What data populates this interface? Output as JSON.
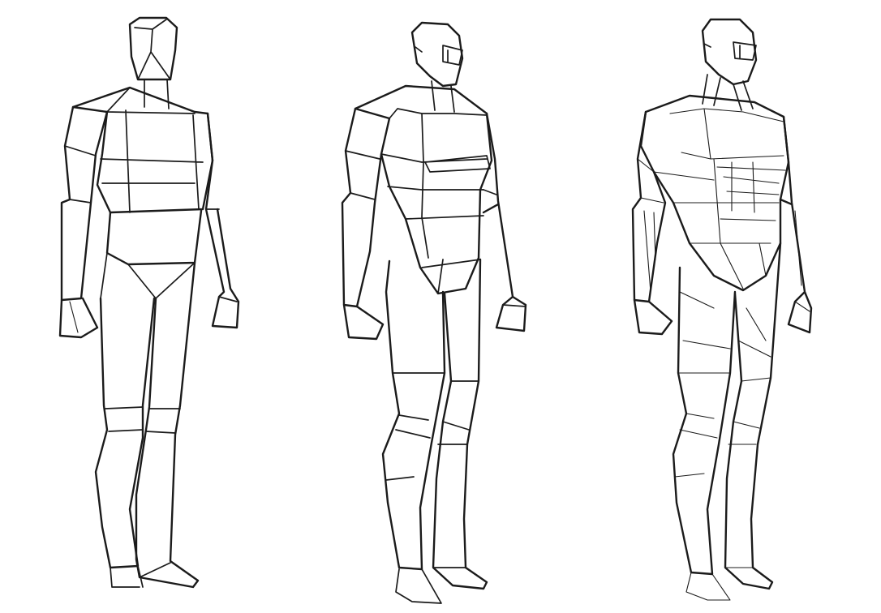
{
  "image": {
    "background": "#ffffff",
    "ink": "#1b1b1b",
    "figures": [
      {
        "stage": "basic-blocks",
        "icon": "mannequin-block-figure"
      },
      {
        "stage": "refined-planes",
        "icon": "mannequin-planar-figure"
      },
      {
        "stage": "muscle-planes",
        "icon": "mannequin-anatomy-figure"
      }
    ]
  }
}
